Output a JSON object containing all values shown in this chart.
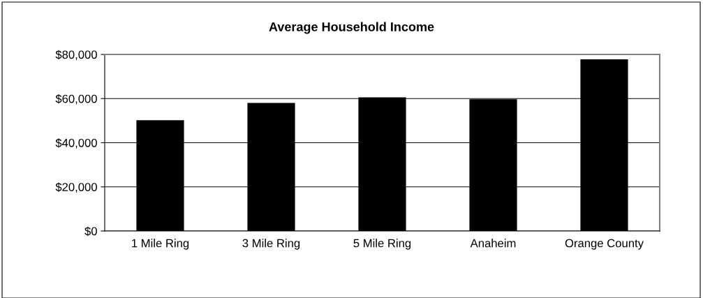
{
  "chart_data": {
    "type": "bar",
    "title": "Average Household Income",
    "categories": [
      "1 Mile Ring",
      "3 Mile Ring",
      "5 Mile Ring",
      "Anaheim",
      "Orange County"
    ],
    "values": [
      50000,
      57800,
      60300,
      59500,
      77600
    ],
    "color": "#000000",
    "ylim": [
      0,
      80000
    ],
    "yticks": [
      {
        "value": 0,
        "label": "$0"
      },
      {
        "value": 20000,
        "label": "$20,000"
      },
      {
        "value": 40000,
        "label": "$40,000"
      },
      {
        "value": 60000,
        "label": "$60,000"
      },
      {
        "value": 80000,
        "label": "$80,000"
      }
    ],
    "grid": "y"
  }
}
